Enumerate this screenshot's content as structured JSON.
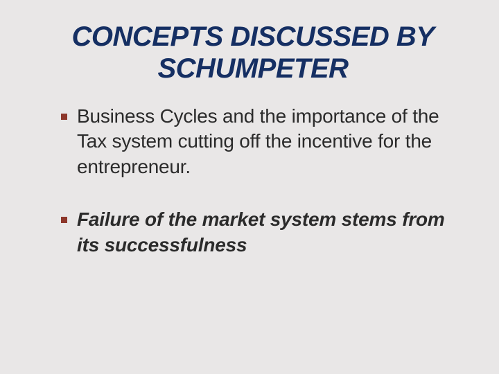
{
  "slide": {
    "title": "CONCEPTS DISCUSSED BY SCHUMPETER",
    "title_color": "#152f63",
    "title_fontsize": 40,
    "background_color": "#e9e7e7",
    "bullets": [
      {
        "text": "Business Cycles and the importance of  the Tax system cutting off  the incentive for the entrepreneur.",
        "bold_italic": false
      },
      {
        "text": "Failure of the market system stems from its successfulness",
        "bold_italic": true
      }
    ],
    "bullet_color": "#2b2b2b",
    "bullet_fontsize": 28,
    "bullet_marker_color": "#8d372b",
    "bullet_marker_size": 9
  }
}
